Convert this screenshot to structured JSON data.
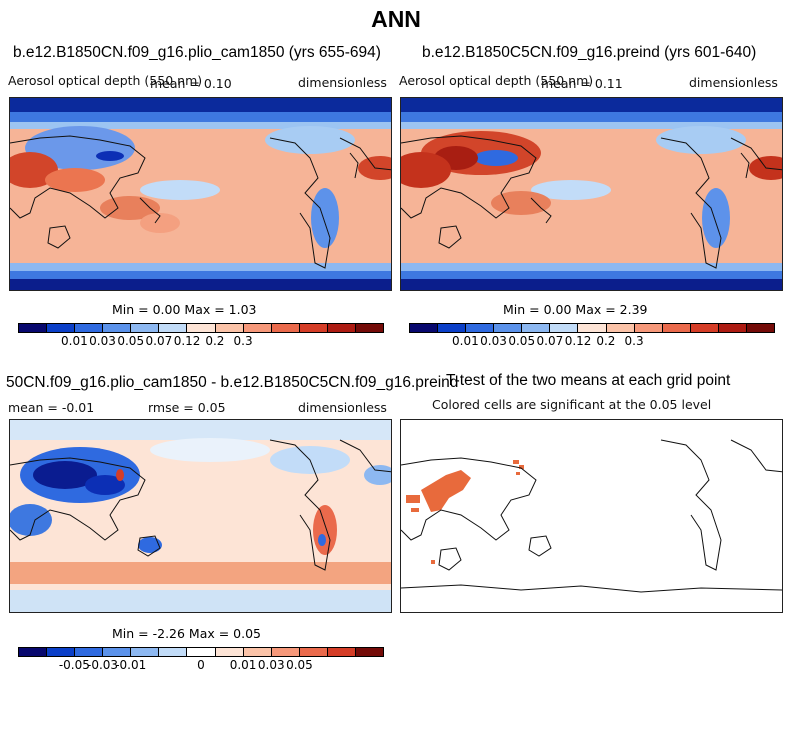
{
  "figure": {
    "title": "ANN"
  },
  "panels": {
    "top_left": {
      "title": "b.e12.B1850CN.f09_g16.plio_cam1850 (yrs 655-694)",
      "variable": "Aerosol optical depth (550 nm)",
      "mean_label": "mean =   0.10",
      "units": "dimensionless",
      "minmax": "Min =    0.00 Max =    1.03"
    },
    "top_right": {
      "title": "b.e12.B1850C5CN.f09_g16.preind (yrs 601-640)",
      "variable": "Aerosol optical depth (550 nm)",
      "mean_label": "mean =   0.11",
      "units": "dimensionless",
      "minmax": "Min =    0.00 Max =    2.39"
    },
    "bottom_left": {
      "title": "50CN.f09_g16.plio_cam1850 - b.e12.B1850C5CN.f09_g16.preind",
      "mean_label": "mean =  -0.01",
      "rmse_label": "rmse =    0.05",
      "units": "dimensionless",
      "minmax": "Min =  -2.26 Max =    0.05"
    },
    "bottom_right": {
      "title": "T-test of the two means at each grid point",
      "subtitle": "Colored cells are significant at the 0.05 level"
    }
  },
  "colorbars": {
    "abs_colors": [
      "#08086e",
      "#0b3fc8",
      "#2f6ae0",
      "#5b92ea",
      "#8db8f1",
      "#c2dcf8",
      "#fde4d6",
      "#fbc3a8",
      "#f6987a",
      "#ea6a4c",
      "#d53d27",
      "#ad1b12",
      "#740b08"
    ],
    "abs_labels": [
      "0.01",
      "0.03",
      "0.05",
      "0.07",
      "0.12",
      "0.2",
      "0.3"
    ],
    "diff_colors": [
      "#08086e",
      "#0b3fc8",
      "#2f6ae0",
      "#5b92ea",
      "#8db8f1",
      "#c2dcf8",
      "#ffffff",
      "#fde4d6",
      "#fbc3a8",
      "#f6987a",
      "#ea6a4c",
      "#d53d27",
      "#740b08"
    ],
    "diff_labels": [
      "-0.05",
      "-0.03",
      "-0.01",
      "0",
      "0.01",
      "0.03",
      "0.05"
    ]
  },
  "colors": {
    "deep_blue": "#0b1e8c",
    "ocean_salmon": "#f7b89a",
    "land_red": "#cf3b22",
    "pale_blue": "#cfe3f6",
    "sig_orange": "#e86a3c",
    "coast": "#111111"
  }
}
